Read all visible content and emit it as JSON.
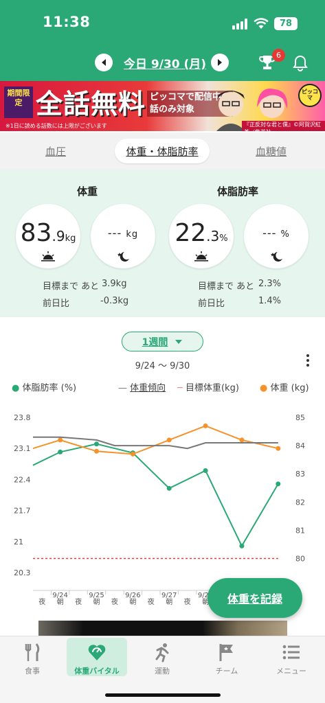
{
  "status": {
    "time": "11:38",
    "battery": "78"
  },
  "header": {
    "date": "今日 9/30 (月)",
    "badge_count": "6",
    "colors": {
      "primary": "#2aa876",
      "badge": "#e53935"
    }
  },
  "banner": {
    "tag": "期間限定",
    "title": "全話無料",
    "sub_line1": "ピッコマで配信中の",
    "sub_line2": "話のみ対象",
    "note": "※1日に読める話数には上限がございます",
    "brand": "ピッコマ",
    "caption": "『正反対な君と僕』©阿賀沢紅茶／集英社"
  },
  "tabs": [
    {
      "label": "血圧"
    },
    {
      "label": "体重・体脂肪率",
      "active": true
    },
    {
      "label": "血糖値"
    }
  ],
  "weight": {
    "title": "体重",
    "morning_int": "83",
    "morning_dec": ".9",
    "unit": "kg",
    "night_placeholder": "---",
    "goal_label": "目標まで あと",
    "goal_value": "3.9kg",
    "diff_label": "前日比",
    "diff_value": "-0.3kg"
  },
  "fat": {
    "title": "体脂肪率",
    "morning_int": "22",
    "morning_dec": ".3",
    "unit": "%",
    "night_placeholder": "---",
    "goal_label": "目標まで あと",
    "goal_value": "2.3%",
    "diff_label": "前日比",
    "diff_value": "1.4%"
  },
  "chart_controls": {
    "period": "1週間",
    "range": "9/24 〜 9/30"
  },
  "legend": {
    "fat": "体脂肪率 (%)",
    "trend": "体重傾向",
    "target": "目標体重(kg)",
    "weight": "体重 (kg)"
  },
  "chart_data": {
    "type": "line",
    "left_axis": {
      "label": "体脂肪率 (%)",
      "ticks": [
        "23.8",
        "23.1",
        "22.4",
        "21.7",
        "21",
        "20.3"
      ],
      "range": [
        20.3,
        23.8
      ]
    },
    "right_axis": {
      "label": "体重 (kg)",
      "ticks": [
        "85",
        "84",
        "83",
        "82",
        "81",
        "80"
      ],
      "range": [
        79.5,
        85
      ]
    },
    "x_slots": [
      "夜",
      "朝",
      "夜",
      "朝",
      "夜",
      "朝",
      "夜",
      "朝",
      "夜",
      "朝",
      "夜",
      "朝",
      "夜",
      "朝"
    ],
    "date_labels": [
      {
        "label": "9/24",
        "slot": 1
      },
      {
        "label": "9/25",
        "slot": 3
      },
      {
        "label": "9/26",
        "slot": 5
      },
      {
        "label": "9/27",
        "slot": 7
      },
      {
        "label": "9/28",
        "slot": 9
      }
    ],
    "series": [
      {
        "name": "体脂肪率 (%)",
        "axis": "left",
        "color": "#2aa876",
        "points": [
          [
            -1,
            22.72
          ],
          [
            1,
            23.02
          ],
          [
            3,
            23.2
          ],
          [
            5,
            23.0
          ],
          [
            7,
            22.2
          ],
          [
            9,
            22.6
          ],
          [
            11,
            20.9
          ],
          [
            13,
            22.3
          ]
        ]
      },
      {
        "name": "体重 (kg)",
        "axis": "right",
        "color": "#f5922b",
        "points": [
          [
            -1,
            83.9
          ],
          [
            1,
            84.2
          ],
          [
            3,
            83.8
          ],
          [
            5,
            83.7
          ],
          [
            7,
            84.2
          ],
          [
            9,
            84.7
          ],
          [
            11,
            84.2
          ],
          [
            13,
            83.9
          ]
        ]
      },
      {
        "name": "体重傾向",
        "axis": "right",
        "color": "#777777",
        "points": [
          [
            -1,
            84.3
          ],
          [
            1,
            84.3
          ],
          [
            3,
            84.2
          ],
          [
            4,
            84.0
          ],
          [
            5,
            84.0
          ],
          [
            7,
            84.0
          ],
          [
            8,
            83.9
          ],
          [
            9,
            84.1
          ],
          [
            13,
            84.1
          ]
        ]
      },
      {
        "name": "目標体重(kg)",
        "axis": "right",
        "color": "#e53935",
        "dashed": true,
        "points": [
          [
            -1,
            80.0
          ],
          [
            13,
            80.0
          ]
        ]
      }
    ],
    "grid": false
  },
  "record_button": "体重を記録",
  "nav": [
    {
      "label": "食事",
      "icon": "fork-knife-icon"
    },
    {
      "label": "体重バイタル",
      "icon": "heart-scale-icon",
      "active": true
    },
    {
      "label": "運動",
      "icon": "runner-icon"
    },
    {
      "label": "チーム",
      "icon": "flag-icon"
    },
    {
      "label": "メニュー",
      "icon": "menu-list-icon"
    }
  ]
}
